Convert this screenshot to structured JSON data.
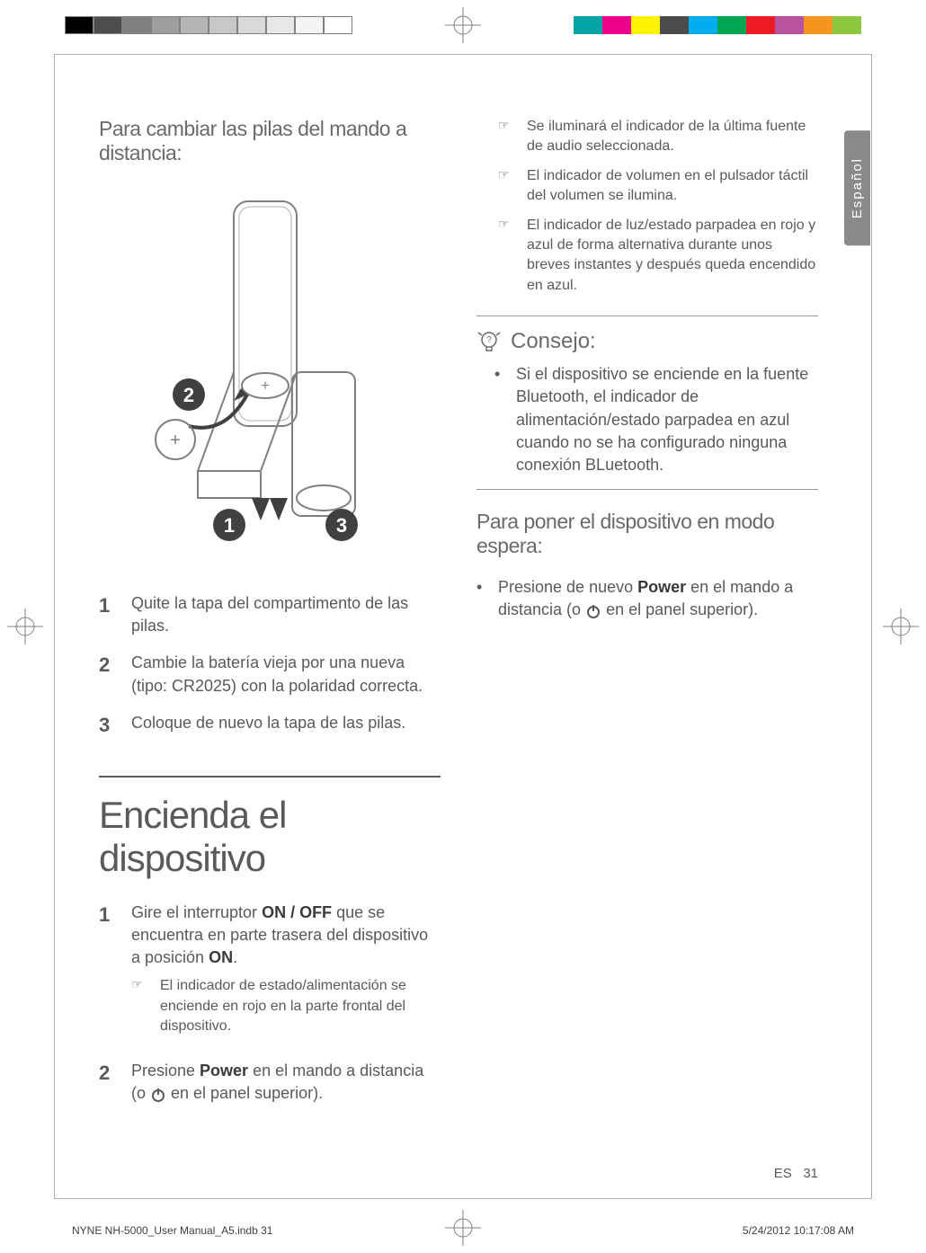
{
  "colorbar_left": [
    "#000000",
    "#4d4d4d",
    "#808080",
    "#9e9e9e",
    "#b5b5b5",
    "#c8c8c8",
    "#d9d9d9",
    "#e8e8e8",
    "#f4f4f4",
    "#ffffff"
  ],
  "colorbar_right": [
    "#00a4a7",
    "#ec008c",
    "#fff200",
    "#4b4b4b",
    "#00aeef",
    "#00a651",
    "#ed1c24",
    "#b9529f",
    "#f7941e",
    "#8dc63f"
  ],
  "language_tab": "Español",
  "left": {
    "heading_remote": "Para cambiar las pilas del mando a distancia:",
    "step1_num": "1",
    "step1_text": "Quite la tapa del compartimento de las pilas.",
    "step2_num": "2",
    "step2_text": "Cambie la batería vieja por una nueva  (tipo: CR2025) con la polaridad correcta.",
    "step3_num": "3",
    "step3_text": "Coloque de nuevo la tapa de las pilas.",
    "heading_turnon": "Encienda el dispositivo",
    "on1_num": "1",
    "on1_a": "Gire el interruptor ",
    "on1_b": "ON / OFF",
    "on1_c": " que se encuentra en parte trasera del dispositivo a posición ",
    "on1_d": "ON",
    "on1_e": ".",
    "on1_note": "El indicador de estado/alimentación se enciende en rojo en la parte frontal del dispositivo.",
    "on2_num": "2",
    "on2_a": "Presione ",
    "on2_b": "Power",
    "on2_c": " en el mando a distancia (o ",
    "on2_d": " en el panel superior)."
  },
  "right": {
    "note1": "Se iluminará el indicador de la última fuente de audio seleccionada.",
    "note2": "El indicador de volumen en el pulsador táctil del volumen se ilumina.",
    "note3": "El indicador de luz/estado parpadea en rojo y azul de forma alternativa durante unos breves instantes y después queda encendido en azul.",
    "tip_heading": "Consejo:",
    "tip_text": "Si el dispositivo se enciende en la fuente Bluetooth, el indicador de alimentación/estado parpadea en azul cuando no se ha configurado ninguna conexión BLuetooth.",
    "standby_heading": "Para poner el dispositivo en modo espera:",
    "standby_a": "Presione de nuevo ",
    "standby_b": "Power",
    "standby_c": " en el mando a distancia (o ",
    "standby_d": " en el panel superior)."
  },
  "footer": {
    "lang_code": "ES",
    "page_num": "31",
    "print_left": "NYNE NH-5000_User Manual_A5.indb   31",
    "print_right": "5/24/2012   10:17:08 AM"
  },
  "note_marker": "☞"
}
